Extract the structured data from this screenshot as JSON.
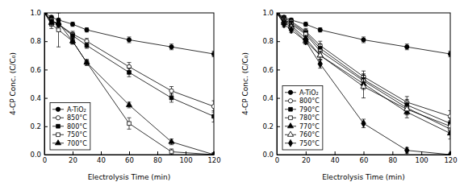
{
  "chart_data": [
    {
      "type": "line",
      "x_label": "Electrolysis Time (min)",
      "y_label": "4-CP Conc. (C/C₀)",
      "x": [
        0,
        5,
        10,
        20,
        30,
        60,
        90,
        120
      ],
      "xlim": [
        0,
        120
      ],
      "xticks": [
        0,
        20,
        40,
        60,
        80,
        100,
        120
      ],
      "ylim": [
        0,
        1.0
      ],
      "yticks": [
        {
          "value": 0,
          "label": "0.0"
        },
        0.2,
        0.4,
        0.6,
        0.8,
        {
          "value": 1.0,
          "label": "1.0"
        }
      ],
      "legend": "lower left",
      "series": [
        {
          "name": "A-TiO₂",
          "color": "#000000",
          "marker": "circle",
          "values": [
            1.0,
            0.97,
            0.95,
            0.92,
            0.88,
            0.81,
            0.76,
            0.71
          ],
          "errors": [
            0.01,
            0.01,
            0.01,
            0.015,
            0.015,
            0.02,
            0.02,
            0.02
          ]
        },
        {
          "name": "850°C",
          "color": "#000000",
          "marker": "open-circle",
          "values": [
            1.0,
            0.95,
            0.92,
            0.85,
            0.8,
            0.62,
            0.45,
            0.34
          ],
          "errors": [
            0.01,
            0.02,
            0.02,
            0.02,
            0.02,
            0.03,
            0.03,
            0.04
          ]
        },
        {
          "name": "800°C",
          "color": "#000000",
          "marker": "square",
          "values": [
            1.0,
            0.94,
            0.92,
            0.84,
            0.77,
            0.58,
            0.4,
            0.27
          ],
          "errors": [
            0.01,
            0.02,
            0.02,
            0.02,
            0.02,
            0.03,
            0.03,
            0.04
          ]
        },
        {
          "name": "750°C",
          "color": "#000000",
          "marker": "open-square",
          "values": [
            1.0,
            0.92,
            0.88,
            0.8,
            0.65,
            0.22,
            0.02,
            0.0
          ],
          "errors": [
            0.01,
            0.03,
            0.12,
            0.02,
            0.02,
            0.04,
            0.02,
            0.0
          ]
        },
        {
          "name": "700°C",
          "color": "#000000",
          "marker": "triangle",
          "values": [
            1.0,
            0.93,
            0.93,
            0.8,
            0.65,
            0.35,
            0.09,
            0.0
          ],
          "errors": [
            0.01,
            0.02,
            0.02,
            0.02,
            0.02,
            0.02,
            0.02,
            0.0
          ]
        }
      ]
    },
    {
      "type": "line",
      "x_label": "Electrolysis Time (min)",
      "y_label": "4-CP Conc. (C/C₀)",
      "x": [
        0,
        5,
        10,
        20,
        30,
        60,
        90,
        120
      ],
      "xlim": [
        0,
        120
      ],
      "xticks": [
        0,
        20,
        40,
        60,
        80,
        100,
        120
      ],
      "ylim": [
        0,
        1.0
      ],
      "yticks": [
        {
          "value": 0,
          "label": "0.0"
        },
        0.2,
        0.4,
        0.6,
        0.8,
        {
          "value": 1.0,
          "label": "1.0"
        }
      ],
      "legend": "lower left",
      "series": [
        {
          "name": "A-TiO₂",
          "color": "#000000",
          "marker": "circle",
          "values": [
            1.0,
            0.97,
            0.95,
            0.92,
            0.88,
            0.81,
            0.76,
            0.71
          ],
          "errors": [
            0.01,
            0.01,
            0.01,
            0.015,
            0.015,
            0.02,
            0.02,
            0.02
          ]
        },
        {
          "name": "800°C",
          "color": "#000000",
          "marker": "open-circle",
          "values": [
            1.0,
            0.96,
            0.94,
            0.87,
            0.77,
            0.55,
            0.37,
            0.27
          ],
          "errors": [
            0.01,
            0.02,
            0.02,
            0.02,
            0.03,
            0.04,
            0.04,
            0.04
          ]
        },
        {
          "name": "790°C",
          "color": "#000000",
          "marker": "square",
          "values": [
            1.0,
            0.95,
            0.93,
            0.86,
            0.75,
            0.53,
            0.35,
            0.22
          ],
          "errors": [
            0.01,
            0.02,
            0.02,
            0.02,
            0.03,
            0.04,
            0.04,
            0.04
          ]
        },
        {
          "name": "780°C",
          "color": "#000000",
          "marker": "open-square",
          "values": [
            1.0,
            0.95,
            0.92,
            0.85,
            0.73,
            0.52,
            0.33,
            0.18
          ],
          "errors": [
            0.01,
            0.02,
            0.02,
            0.02,
            0.03,
            0.04,
            0.04,
            0.04
          ]
        },
        {
          "name": "770°C",
          "color": "#000000",
          "marker": "triangle",
          "values": [
            1.0,
            0.94,
            0.91,
            0.82,
            0.7,
            0.5,
            0.3,
            0.15
          ],
          "errors": [
            0.01,
            0.02,
            0.02,
            0.02,
            0.03,
            0.04,
            0.04,
            0.04
          ]
        },
        {
          "name": "760°C",
          "color": "#000000",
          "marker": "open-triangle",
          "values": [
            1.0,
            0.93,
            0.9,
            0.8,
            0.7,
            0.48,
            0.32,
            0.2
          ],
          "errors": [
            0.01,
            0.02,
            0.02,
            0.02,
            0.03,
            0.08,
            0.04,
            0.04
          ]
        },
        {
          "name": "750°C",
          "color": "#000000",
          "marker": "diamond",
          "values": [
            1.0,
            0.92,
            0.88,
            0.8,
            0.64,
            0.22,
            0.03,
            0.0
          ],
          "errors": [
            0.01,
            0.02,
            0.02,
            0.02,
            0.03,
            0.03,
            0.02,
            0.0
          ]
        }
      ]
    }
  ]
}
